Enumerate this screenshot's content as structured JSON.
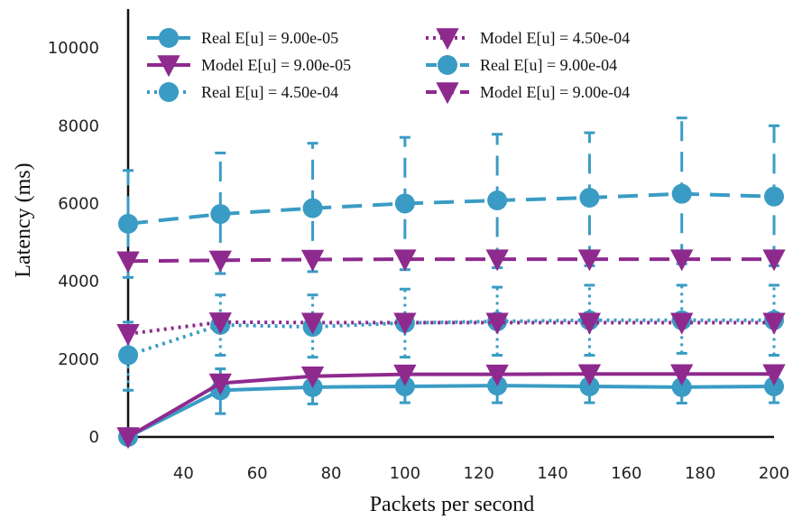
{
  "chart_data": {
    "type": "line",
    "title": "",
    "xlabel": "Packets per second",
    "ylabel": "Latency (ms)",
    "xlim": [
      25,
      200
    ],
    "ylim": [
      0,
      11000
    ],
    "xticks": [
      40,
      60,
      80,
      100,
      120,
      140,
      160,
      180,
      200
    ],
    "yticks": [
      0,
      2000,
      4000,
      6000,
      8000,
      10000
    ],
    "grid": false,
    "legend_position": "top-left",
    "x": [
      25,
      50,
      75,
      100,
      125,
      150,
      175,
      200
    ],
    "series": [
      {
        "name": "Real E[u] = 9.00e-05",
        "color": "#3a9cc4",
        "style": "solid",
        "marker": "circle",
        "values": [
          0,
          1200,
          1280,
          1300,
          1320,
          1300,
          1280,
          1300
        ],
        "err_low": [
          0,
          600,
          850,
          880,
          880,
          880,
          870,
          880
        ],
        "err_high": [
          0,
          1750,
          1720,
          1700,
          1700,
          1700,
          1720,
          1720
        ]
      },
      {
        "name": "Model E[u] = 9.00e-05",
        "color": "#8e2a8e",
        "style": "solid",
        "marker": "triangle",
        "values": [
          0,
          1380,
          1560,
          1610,
          1610,
          1620,
          1620,
          1620
        ]
      },
      {
        "name": "Real E[u] = 4.50e-04",
        "color": "#3a9cc4",
        "style": "dotted",
        "marker": "circle",
        "values": [
          2100,
          2880,
          2830,
          2930,
          2970,
          3000,
          3000,
          3000
        ],
        "err_low": [
          1200,
          2100,
          2050,
          2050,
          2100,
          2100,
          2150,
          2100
        ],
        "err_high": [
          2950,
          3650,
          3650,
          3800,
          3850,
          3900,
          3900,
          3900
        ]
      },
      {
        "name": "Model E[u] = 4.50e-04",
        "color": "#8e2a8e",
        "style": "dotted",
        "marker": "triangle",
        "values": [
          2650,
          2950,
          2940,
          2940,
          2940,
          2940,
          2940,
          2940
        ]
      },
      {
        "name": "Real E[u] = 9.00e-04",
        "color": "#3a9cc4",
        "style": "dashed",
        "marker": "circle",
        "values": [
          5480,
          5730,
          5880,
          6000,
          6080,
          6150,
          6250,
          6180
        ],
        "err_low": [
          4100,
          4200,
          4250,
          4300,
          4350,
          4400,
          4450,
          4400
        ],
        "err_high": [
          6850,
          7300,
          7550,
          7700,
          7780,
          7820,
          8200,
          8000
        ]
      },
      {
        "name": "Model E[u] = 9.00e-04",
        "color": "#8e2a8e",
        "style": "dashed",
        "marker": "triangle",
        "values": [
          4520,
          4540,
          4560,
          4570,
          4570,
          4570,
          4570,
          4570
        ]
      }
    ]
  }
}
